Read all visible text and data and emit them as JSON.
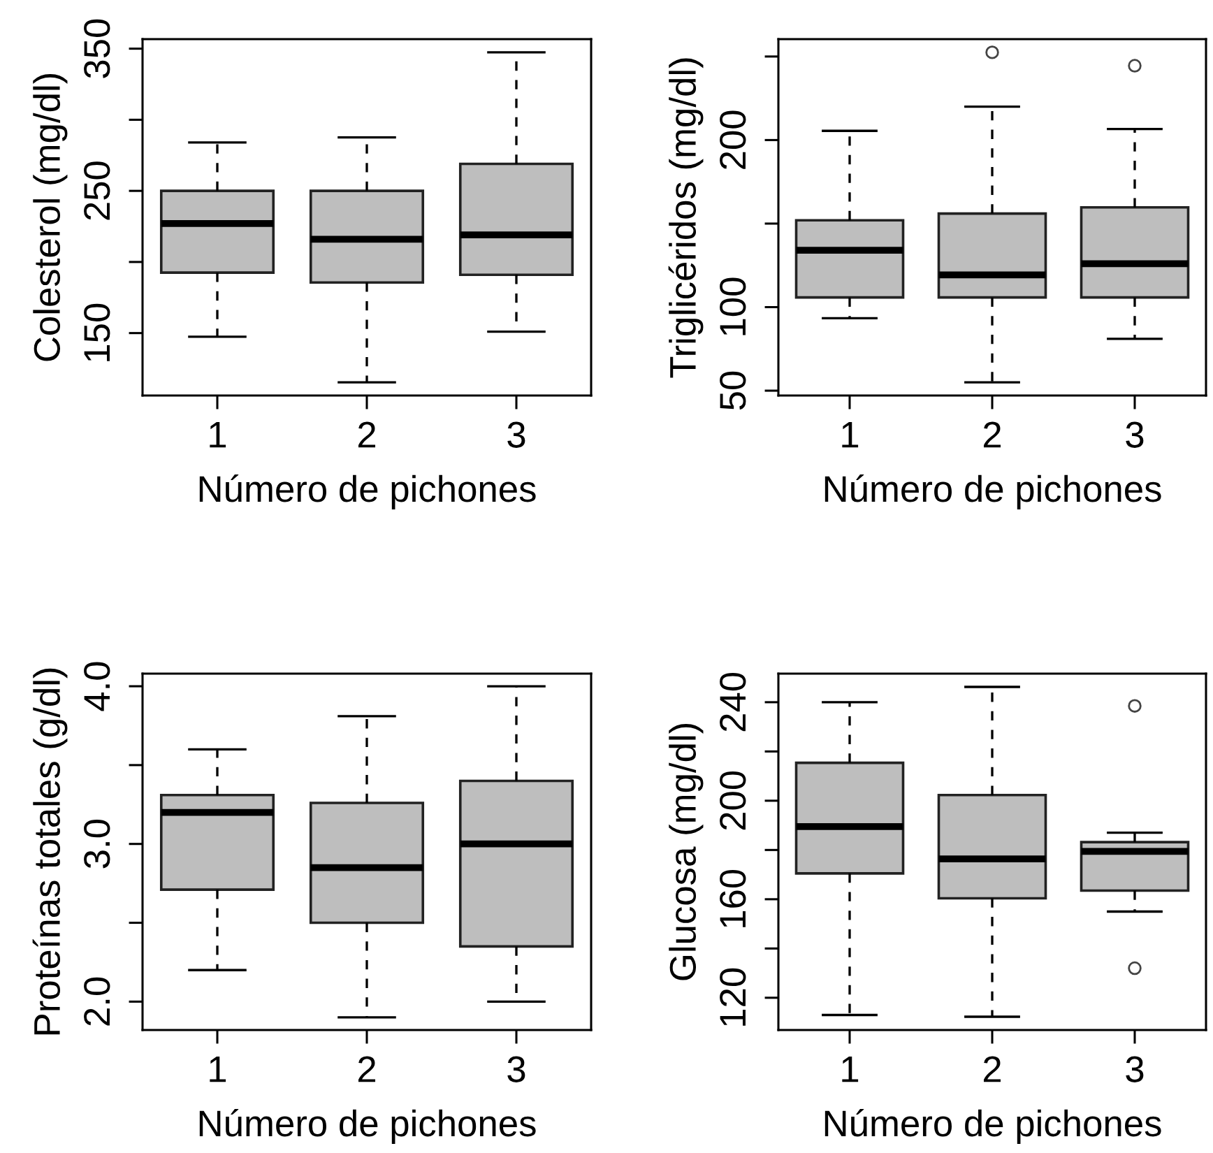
{
  "chart_data": [
    {
      "type": "box",
      "xlabel": "Número de pichones",
      "ylabel": "Colesterol (mg/dl)",
      "categories": [
        "1",
        "2",
        "3"
      ],
      "color": "#bebebe",
      "ylim": [
        106.1,
        356.7
      ],
      "yticks": [
        150,
        {
          "value": 200,
          "label": null
        },
        250,
        {
          "value": 300,
          "label": null
        },
        350
      ],
      "boxes": [
        {
          "low": 147.4,
          "q1": 192.5,
          "median": 227,
          "q3": 250,
          "high": 284
        },
        {
          "low": 115.4,
          "q1": 185.6,
          "median": 216,
          "q3": 250,
          "high": 287.6
        },
        {
          "low": 151,
          "q1": 191,
          "median": 219,
          "q3": 269,
          "high": 347.4
        }
      ]
    },
    {
      "type": "box",
      "xlabel": "Número de pichones",
      "ylabel": "Triglicéridos (mg/dl)",
      "categories": [
        "1",
        "2",
        "3"
      ],
      "color": "#bebebe",
      "ylim": [
        47.1,
        260.4
      ],
      "yticks": [
        50,
        100,
        {
          "value": 150,
          "label": null
        },
        200,
        {
          "value": 250,
          "label": null
        }
      ],
      "boxes": [
        {
          "low": 93.4,
          "q1": 105.8,
          "median": 134,
          "q3": 152,
          "high": 205.5
        },
        {
          "low": 55,
          "q1": 105.8,
          "median": 119.3,
          "q3": 156,
          "high": 220,
          "outliers": [
            252.5
          ]
        },
        {
          "low": 81,
          "q1": 105.8,
          "median": 126,
          "q3": 159.7,
          "high": 206.6,
          "outliers": [
            244.5
          ]
        }
      ]
    },
    {
      "type": "box",
      "xlabel": "Número de pichones",
      "ylabel": "Proteínas totales (g/dl)",
      "categories": [
        "1",
        "2",
        "3"
      ],
      "color": "#bebebe",
      "ylim": [
        1.82,
        4.08
      ],
      "yticks": [
        {
          "value": 2.0,
          "label": "2.0"
        },
        {
          "value": 2.5,
          "label": null
        },
        {
          "value": 3.0,
          "label": "3.0"
        },
        {
          "value": 3.5,
          "label": null
        },
        {
          "value": 4.0,
          "label": "4.0"
        }
      ],
      "boxes": [
        {
          "low": 2.2,
          "q1": 2.71,
          "median": 3.2,
          "q3": 3.31,
          "high": 3.6
        },
        {
          "low": 1.9,
          "q1": 2.5,
          "median": 2.85,
          "q3": 3.26,
          "high": 3.81
        },
        {
          "low": 2.0,
          "q1": 2.35,
          "median": 3.0,
          "q3": 3.4,
          "high": 4.0
        }
      ]
    },
    {
      "type": "box",
      "xlabel": "Número de pichones",
      "ylabel": "Glucosa (mg/dl)",
      "categories": [
        "1",
        "2",
        "3"
      ],
      "color": "#bebebe",
      "ylim": [
        106.9,
        251.6
      ],
      "yticks": [
        120,
        {
          "value": 140,
          "label": null
        },
        160,
        {
          "value": 180,
          "label": null
        },
        200,
        {
          "value": 220,
          "label": null
        },
        240
      ],
      "boxes": [
        {
          "low": 113,
          "q1": 170.5,
          "median": 189.5,
          "q3": 215.4,
          "high": 240
        },
        {
          "low": 112.3,
          "q1": 160.4,
          "median": 176.4,
          "q3": 202.3,
          "high": 246.2
        },
        {
          "low": 155,
          "q1": 163.5,
          "median": 179.4,
          "q3": 183.2,
          "high": 187,
          "outliers": [
            238.5,
            132
          ]
        }
      ]
    }
  ]
}
